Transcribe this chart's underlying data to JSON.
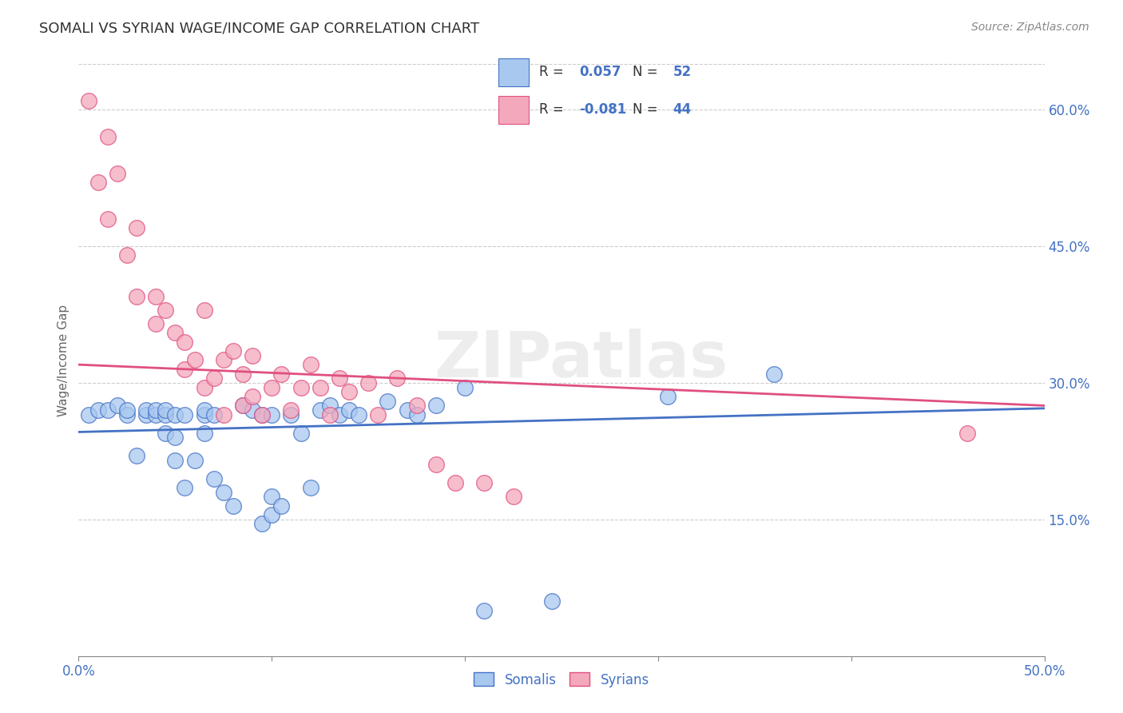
{
  "title": "SOMALI VS SYRIAN WAGE/INCOME GAP CORRELATION CHART",
  "source": "Source: ZipAtlas.com",
  "ylabel": "Wage/Income Gap",
  "ytick_labels": [
    "15.0%",
    "30.0%",
    "45.0%",
    "60.0%"
  ],
  "ytick_values": [
    0.15,
    0.3,
    0.45,
    0.6
  ],
  "xmin": 0.0,
  "xmax": 0.5,
  "ymin": 0.0,
  "ymax": 0.65,
  "somali_R": "0.057",
  "somali_N": "52",
  "syrian_R": "-0.081",
  "syrian_N": "44",
  "somali_color": "#a8c8f0",
  "syrian_color": "#f4a8bc",
  "trend_somali_color": "#4472c4",
  "trend_syrian_color": "#e05080",
  "legend_label_somali": "Somalis",
  "legend_label_syrian": "Syrians",
  "watermark": "ZIPatlas",
  "title_color": "#333333",
  "axis_color": "#4472c4",
  "somali_trend_y0": 0.246,
  "somali_trend_y1": 0.272,
  "syrian_trend_y0": 0.32,
  "syrian_trend_y1": 0.275,
  "somali_points_x": [
    0.005,
    0.01,
    0.015,
    0.02,
    0.025,
    0.025,
    0.03,
    0.035,
    0.035,
    0.04,
    0.04,
    0.045,
    0.045,
    0.045,
    0.05,
    0.05,
    0.05,
    0.055,
    0.055,
    0.06,
    0.065,
    0.065,
    0.065,
    0.07,
    0.07,
    0.075,
    0.08,
    0.085,
    0.09,
    0.095,
    0.095,
    0.1,
    0.1,
    0.1,
    0.105,
    0.11,
    0.115,
    0.12,
    0.125,
    0.13,
    0.135,
    0.14,
    0.145,
    0.16,
    0.17,
    0.175,
    0.185,
    0.2,
    0.21,
    0.245,
    0.305,
    0.36
  ],
  "somali_points_y": [
    0.265,
    0.27,
    0.27,
    0.275,
    0.265,
    0.27,
    0.22,
    0.265,
    0.27,
    0.265,
    0.27,
    0.265,
    0.245,
    0.27,
    0.215,
    0.265,
    0.24,
    0.185,
    0.265,
    0.215,
    0.265,
    0.245,
    0.27,
    0.265,
    0.195,
    0.18,
    0.165,
    0.275,
    0.27,
    0.265,
    0.145,
    0.175,
    0.265,
    0.155,
    0.165,
    0.265,
    0.245,
    0.185,
    0.27,
    0.275,
    0.265,
    0.27,
    0.265,
    0.28,
    0.27,
    0.265,
    0.275,
    0.295,
    0.05,
    0.06,
    0.285,
    0.31
  ],
  "syrian_points_x": [
    0.005,
    0.01,
    0.015,
    0.015,
    0.02,
    0.025,
    0.03,
    0.03,
    0.04,
    0.04,
    0.045,
    0.05,
    0.055,
    0.055,
    0.06,
    0.065,
    0.065,
    0.07,
    0.075,
    0.075,
    0.08,
    0.085,
    0.085,
    0.09,
    0.09,
    0.095,
    0.1,
    0.105,
    0.11,
    0.115,
    0.12,
    0.125,
    0.13,
    0.135,
    0.14,
    0.15,
    0.155,
    0.165,
    0.175,
    0.185,
    0.195,
    0.21,
    0.225,
    0.46
  ],
  "syrian_points_y": [
    0.61,
    0.52,
    0.57,
    0.48,
    0.53,
    0.44,
    0.395,
    0.47,
    0.365,
    0.395,
    0.38,
    0.355,
    0.345,
    0.315,
    0.325,
    0.38,
    0.295,
    0.305,
    0.325,
    0.265,
    0.335,
    0.31,
    0.275,
    0.33,
    0.285,
    0.265,
    0.295,
    0.31,
    0.27,
    0.295,
    0.32,
    0.295,
    0.265,
    0.305,
    0.29,
    0.3,
    0.265,
    0.305,
    0.275,
    0.21,
    0.19,
    0.19,
    0.175,
    0.245
  ]
}
